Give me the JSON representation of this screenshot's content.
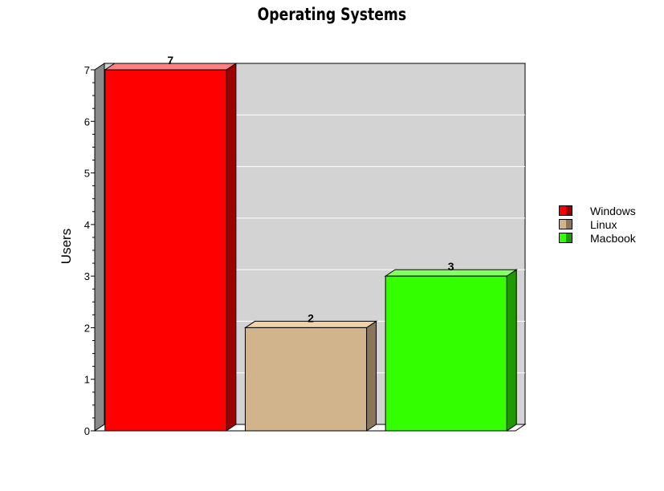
{
  "chart_data": {
    "type": "bar",
    "title": "Operating Systems",
    "xlabel": "",
    "ylabel": "Users",
    "categories": [
      "Windows",
      "Linux",
      "Macbook"
    ],
    "values": [
      7,
      2,
      3
    ],
    "data_labels": [
      "7",
      "2",
      "3"
    ],
    "y_ticks": [
      "0",
      "1",
      "2",
      "3",
      "4",
      "5",
      "6",
      "7"
    ],
    "ylim": [
      0,
      7
    ],
    "grid": true,
    "legend_position": "right",
    "colors": {
      "Windows": {
        "front": "#ff0000",
        "side": "#9e0000",
        "top": "#ff8080"
      },
      "Linux": {
        "front": "#d2b48c",
        "side": "#8a7558",
        "top": "#f0d2a8"
      },
      "Macbook": {
        "front": "#33ff00",
        "side": "#1f9900",
        "top": "#85ff66"
      }
    },
    "plot_background": "#d3d3d3"
  },
  "legend": {
    "items": [
      {
        "label": "Windows",
        "color": "#ff0000",
        "dark": "#9e0000"
      },
      {
        "label": "Linux",
        "color": "#d2b48c",
        "dark": "#8a7558"
      },
      {
        "label": "Macbook",
        "color": "#33ff00",
        "dark": "#1f9900"
      }
    ]
  }
}
